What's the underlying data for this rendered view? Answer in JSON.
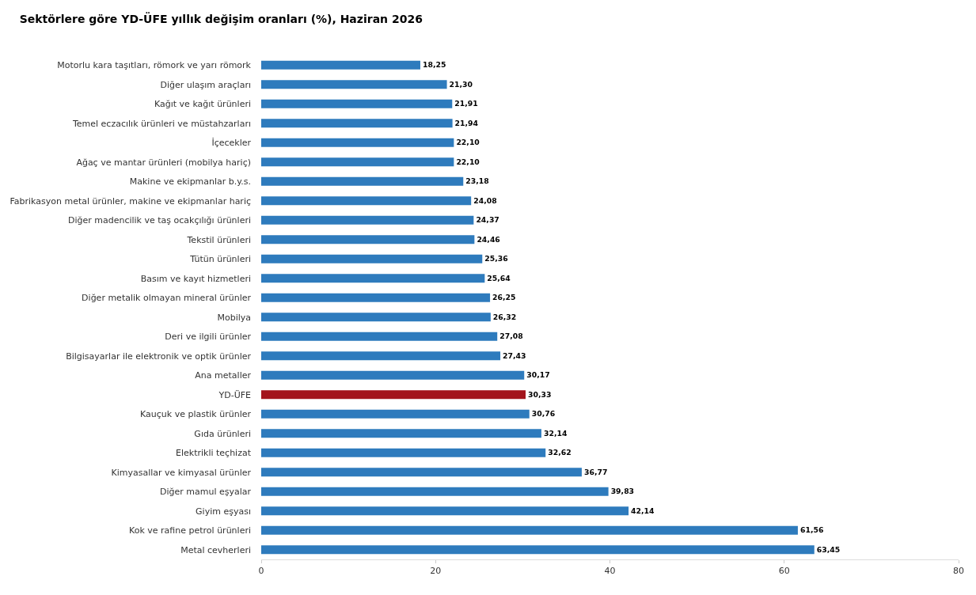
{
  "chart_data": {
    "type": "bar",
    "orientation": "horizontal",
    "title": "Sektörlere göre YD-ÜFE yıllık değişim oranları (%), Haziran 2026",
    "categories": [
      "Motorlu kara taşıtları, römork ve yarı römork",
      "Diğer ulaşım araçları",
      "Kağıt ve kağıt ürünleri",
      "Temel eczacılık ürünleri ve müstahzarları",
      "İçecekler",
      "Ağaç ve mantar ürünleri (mobilya hariç)",
      "Makine ve ekipmanlar b.y.s.",
      "Fabrikasyon metal ürünler, makine ve ekipmanlar hariç",
      "Diğer madencilik ve taş ocakçılığı ürünleri",
      "Tekstil ürünleri",
      "Tütün ürünleri",
      "Basım ve kayıt hizmetleri",
      "Diğer metalik olmayan mineral ürünler",
      "Mobilya",
      "Deri ve ilgili ürünler",
      "Bilgisayarlar ile elektronik ve optik ürünler",
      "Ana metaller",
      "YD-ÜFE",
      "Kauçuk ve plastik ürünler",
      "Gıda ürünleri",
      "Elektrikli teçhizat",
      "Kimyasallar ve kimyasal ürünler",
      "Diğer mamul eşyalar",
      "Giyim eşyası",
      "Kok ve rafine petrol ürünleri",
      "Metal cevherleri"
    ],
    "values": [
      18.25,
      21.3,
      21.91,
      21.94,
      22.1,
      22.1,
      23.18,
      24.08,
      24.37,
      24.46,
      25.36,
      25.64,
      26.25,
      26.32,
      27.08,
      27.43,
      30.17,
      30.33,
      30.76,
      32.14,
      32.62,
      36.77,
      39.83,
      42.14,
      61.56,
      63.45
    ],
    "value_labels": [
      "18,25",
      "21,30",
      "21,91",
      "21,94",
      "22,10",
      "22,10",
      "23,18",
      "24,08",
      "24,37",
      "24,46",
      "25,36",
      "25,64",
      "26,25",
      "26,32",
      "27,08",
      "27,43",
      "30,17",
      "30,33",
      "30,76",
      "32,14",
      "32,62",
      "36,77",
      "39,83",
      "42,14",
      "61,56",
      "63,45"
    ],
    "colors": [
      "#2e7bbd",
      "#2e7bbd",
      "#2e7bbd",
      "#2e7bbd",
      "#2e7bbd",
      "#2e7bbd",
      "#2e7bbd",
      "#2e7bbd",
      "#2e7bbd",
      "#2e7bbd",
      "#2e7bbd",
      "#2e7bbd",
      "#2e7bbd",
      "#2e7bbd",
      "#2e7bbd",
      "#2e7bbd",
      "#2e7bbd",
      "#a3141c",
      "#2e7bbd",
      "#2e7bbd",
      "#2e7bbd",
      "#2e7bbd",
      "#2e7bbd",
      "#2e7bbd",
      "#2e7bbd",
      "#2e7bbd"
    ],
    "xlim": [
      0,
      80
    ],
    "xticks": [
      0,
      20,
      40,
      60,
      80
    ]
  }
}
